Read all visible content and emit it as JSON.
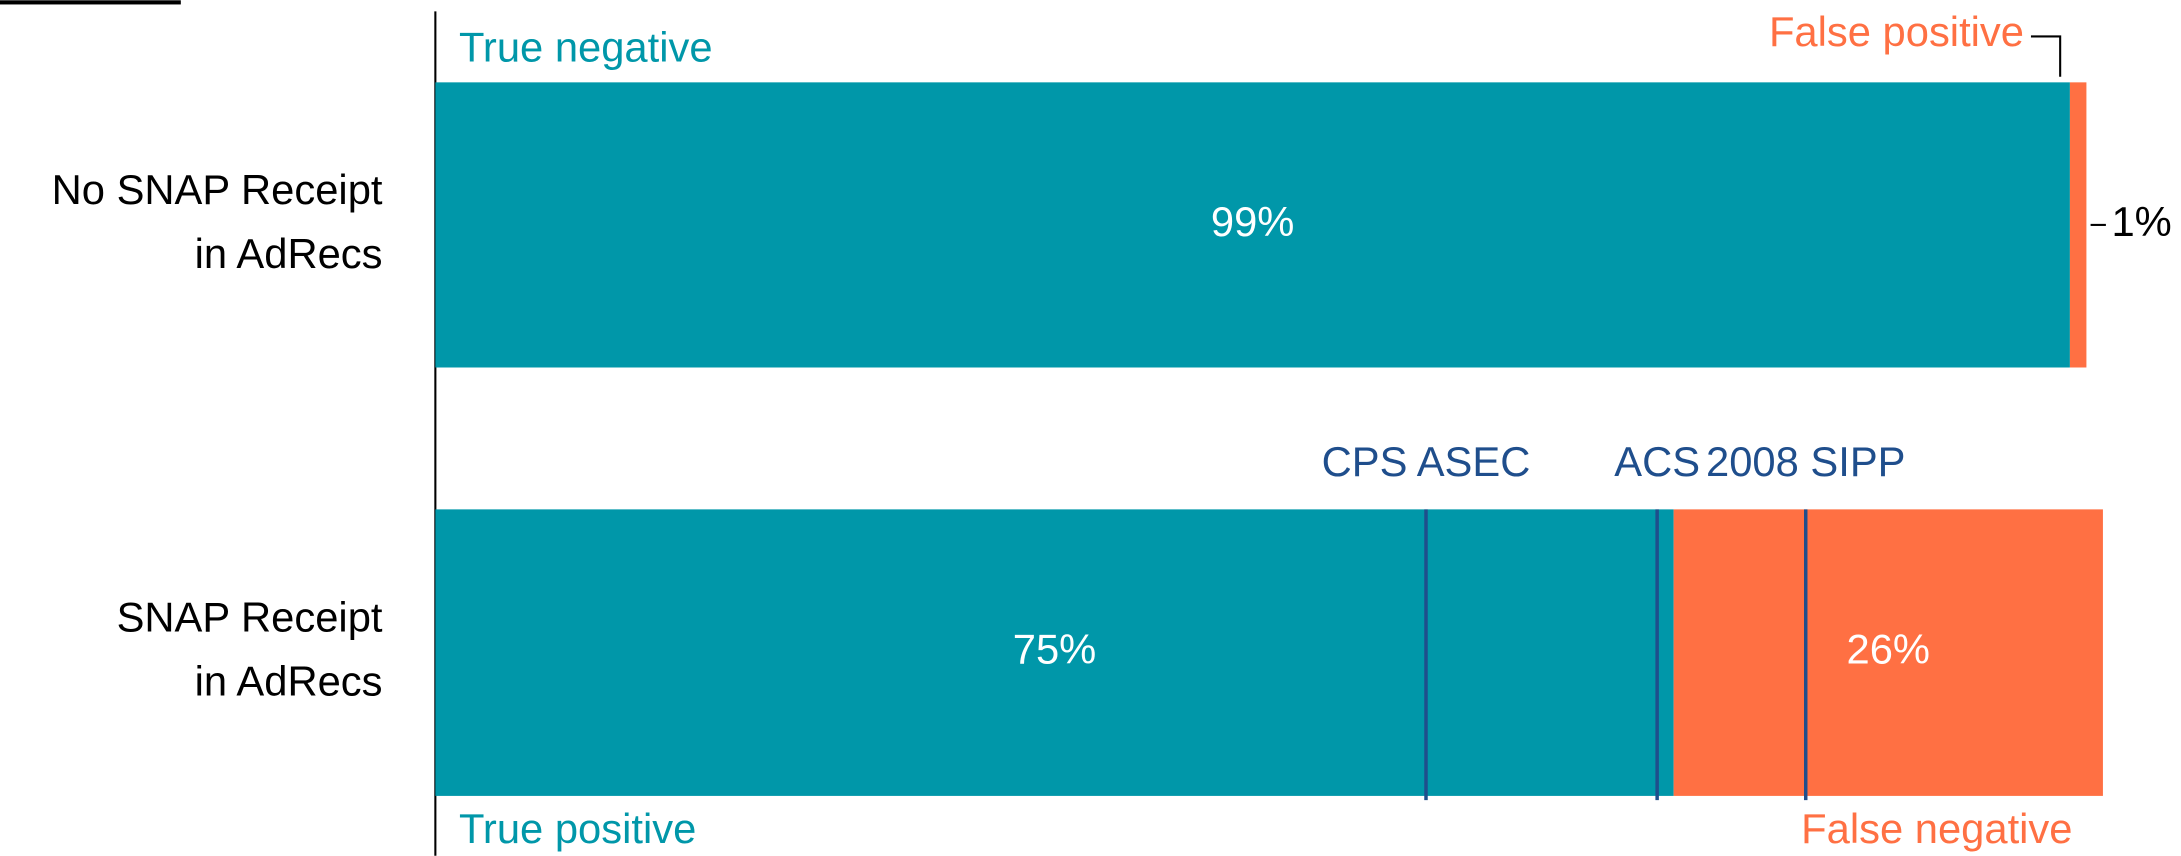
{
  "chart_data": {
    "type": "stacked-bar-horizontal",
    "categories": [
      [
        "No SNAP Receipt",
        "in AdRecs"
      ],
      [
        "SNAP Receipt",
        "in AdRecs"
      ]
    ],
    "series": [
      {
        "color": "#0097a9",
        "labels": [
          "True negative",
          "True positive"
        ],
        "values": [
          99,
          75
        ],
        "value_labels": [
          "99%",
          "75%"
        ]
      },
      {
        "color": "#ff7043",
        "labels": [
          "False positive",
          "False negative"
        ],
        "values": [
          1,
          26
        ],
        "value_labels": [
          "1%",
          "26%"
        ]
      }
    ],
    "xlim": [
      0,
      100
    ],
    "reference_lines": [
      {
        "label": "CPS ASEC",
        "value": 60
      },
      {
        "label": "ACS",
        "value": 74
      },
      {
        "label": "2008 SIPP",
        "value": 83
      }
    ],
    "reference_color": "#1f4e8c"
  }
}
